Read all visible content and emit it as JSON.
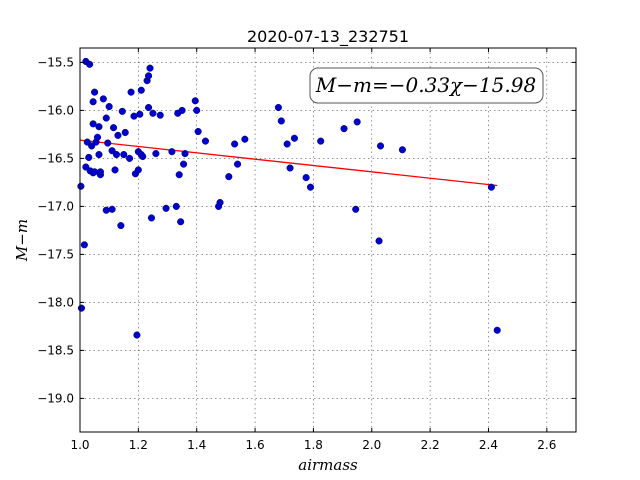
{
  "chart_data": {
    "type": "scatter",
    "title": "2020-07-13_232751",
    "xlabel": "airmass",
    "ylabel": "M−m",
    "xlim": [
      1.0,
      2.7
    ],
    "ylim": [
      -15.35,
      -19.35
    ],
    "y_inverted": true,
    "grid": true,
    "x_ticks": [
      1.0,
      1.2,
      1.4,
      1.6,
      1.8,
      2.0,
      2.2,
      2.4,
      2.6
    ],
    "x_tick_labels": [
      "1.0",
      "1.2",
      "1.4",
      "1.6",
      "1.8",
      "2.0",
      "2.2",
      "2.4",
      "2.6"
    ],
    "y_ticks": [
      -15.5,
      -16.0,
      -16.5,
      -17.0,
      -17.5,
      -18.0,
      -18.5,
      -19.0
    ],
    "y_tick_labels": [
      "−15.5",
      "−16.0",
      "−16.5",
      "−17.0",
      "−17.5",
      "−18.0",
      "−18.5",
      "−19.0"
    ],
    "annotation": "M−m=−0.33χ−15.98",
    "annotation_position": "top-right",
    "fit": {
      "slope": -0.33,
      "intercept": -15.98,
      "x_range": [
        1.0,
        2.43
      ],
      "color": "#ff0000"
    },
    "point_color": "#0000cc",
    "points": [
      [
        1.003,
        -16.79
      ],
      [
        1.005,
        -18.06
      ],
      [
        1.015,
        -17.4
      ],
      [
        1.02,
        -16.59
      ],
      [
        1.02,
        -15.49
      ],
      [
        1.025,
        -16.33
      ],
      [
        1.03,
        -16.49
      ],
      [
        1.033,
        -15.52
      ],
      [
        1.035,
        -16.63
      ],
      [
        1.04,
        -16.37
      ],
      [
        1.045,
        -16.65
      ],
      [
        1.045,
        -15.91
      ],
      [
        1.045,
        -16.14
      ],
      [
        1.05,
        -16.64
      ],
      [
        1.05,
        -15.81
      ],
      [
        1.055,
        -16.33
      ],
      [
        1.06,
        -16.28
      ],
      [
        1.065,
        -16.46
      ],
      [
        1.065,
        -16.17
      ],
      [
        1.07,
        -16.67
      ],
      [
        1.07,
        -16.64
      ],
      [
        1.08,
        -15.88
      ],
      [
        1.09,
        -16.08
      ],
      [
        1.09,
        -17.04
      ],
      [
        1.095,
        -16.34
      ],
      [
        1.1,
        -15.96
      ],
      [
        1.11,
        -17.03
      ],
      [
        1.11,
        -16.42
      ],
      [
        1.115,
        -16.18
      ],
      [
        1.12,
        -16.62
      ],
      [
        1.125,
        -16.46
      ],
      [
        1.13,
        -16.26
      ],
      [
        1.14,
        -17.2
      ],
      [
        1.145,
        -16.01
      ],
      [
        1.15,
        -16.46
      ],
      [
        1.155,
        -16.23
      ],
      [
        1.17,
        -16.5
      ],
      [
        1.175,
        -15.81
      ],
      [
        1.185,
        -16.06
      ],
      [
        1.19,
        -16.66
      ],
      [
        1.195,
        -18.34
      ],
      [
        1.2,
        -16.43
      ],
      [
        1.2,
        -16.62
      ],
      [
        1.205,
        -16.04
      ],
      [
        1.21,
        -15.79
      ],
      [
        1.21,
        -16.46
      ],
      [
        1.215,
        -16.48
      ],
      [
        1.23,
        -15.69
      ],
      [
        1.235,
        -15.64
      ],
      [
        1.235,
        -15.97
      ],
      [
        1.24,
        -15.56
      ],
      [
        1.245,
        -17.12
      ],
      [
        1.25,
        -16.03
      ],
      [
        1.26,
        -16.45
      ],
      [
        1.275,
        -16.05
      ],
      [
        1.295,
        -17.02
      ],
      [
        1.315,
        -16.43
      ],
      [
        1.33,
        -17.0
      ],
      [
        1.335,
        -16.03
      ],
      [
        1.34,
        -16.67
      ],
      [
        1.345,
        -17.16
      ],
      [
        1.35,
        -16.0
      ],
      [
        1.355,
        -16.56
      ],
      [
        1.36,
        -16.45
      ],
      [
        1.395,
        -15.9
      ],
      [
        1.4,
        -16.0
      ],
      [
        1.405,
        -16.22
      ],
      [
        1.43,
        -16.32
      ],
      [
        1.475,
        -17.0
      ],
      [
        1.48,
        -16.96
      ],
      [
        1.51,
        -16.69
      ],
      [
        1.53,
        -16.35
      ],
      [
        1.54,
        -16.56
      ],
      [
        1.565,
        -16.3
      ],
      [
        1.68,
        -15.97
      ],
      [
        1.69,
        -16.11
      ],
      [
        1.71,
        -16.35
      ],
      [
        1.72,
        -16.6
      ],
      [
        1.735,
        -16.29
      ],
      [
        1.775,
        -16.7
      ],
      [
        1.79,
        -16.8
      ],
      [
        1.825,
        -16.32
      ],
      [
        1.905,
        -16.19
      ],
      [
        1.945,
        -17.03
      ],
      [
        1.95,
        -16.12
      ],
      [
        2.025,
        -17.36
      ],
      [
        2.03,
        -16.37
      ],
      [
        2.105,
        -16.41
      ],
      [
        2.41,
        -16.8
      ],
      [
        2.43,
        -18.29
      ]
    ]
  }
}
